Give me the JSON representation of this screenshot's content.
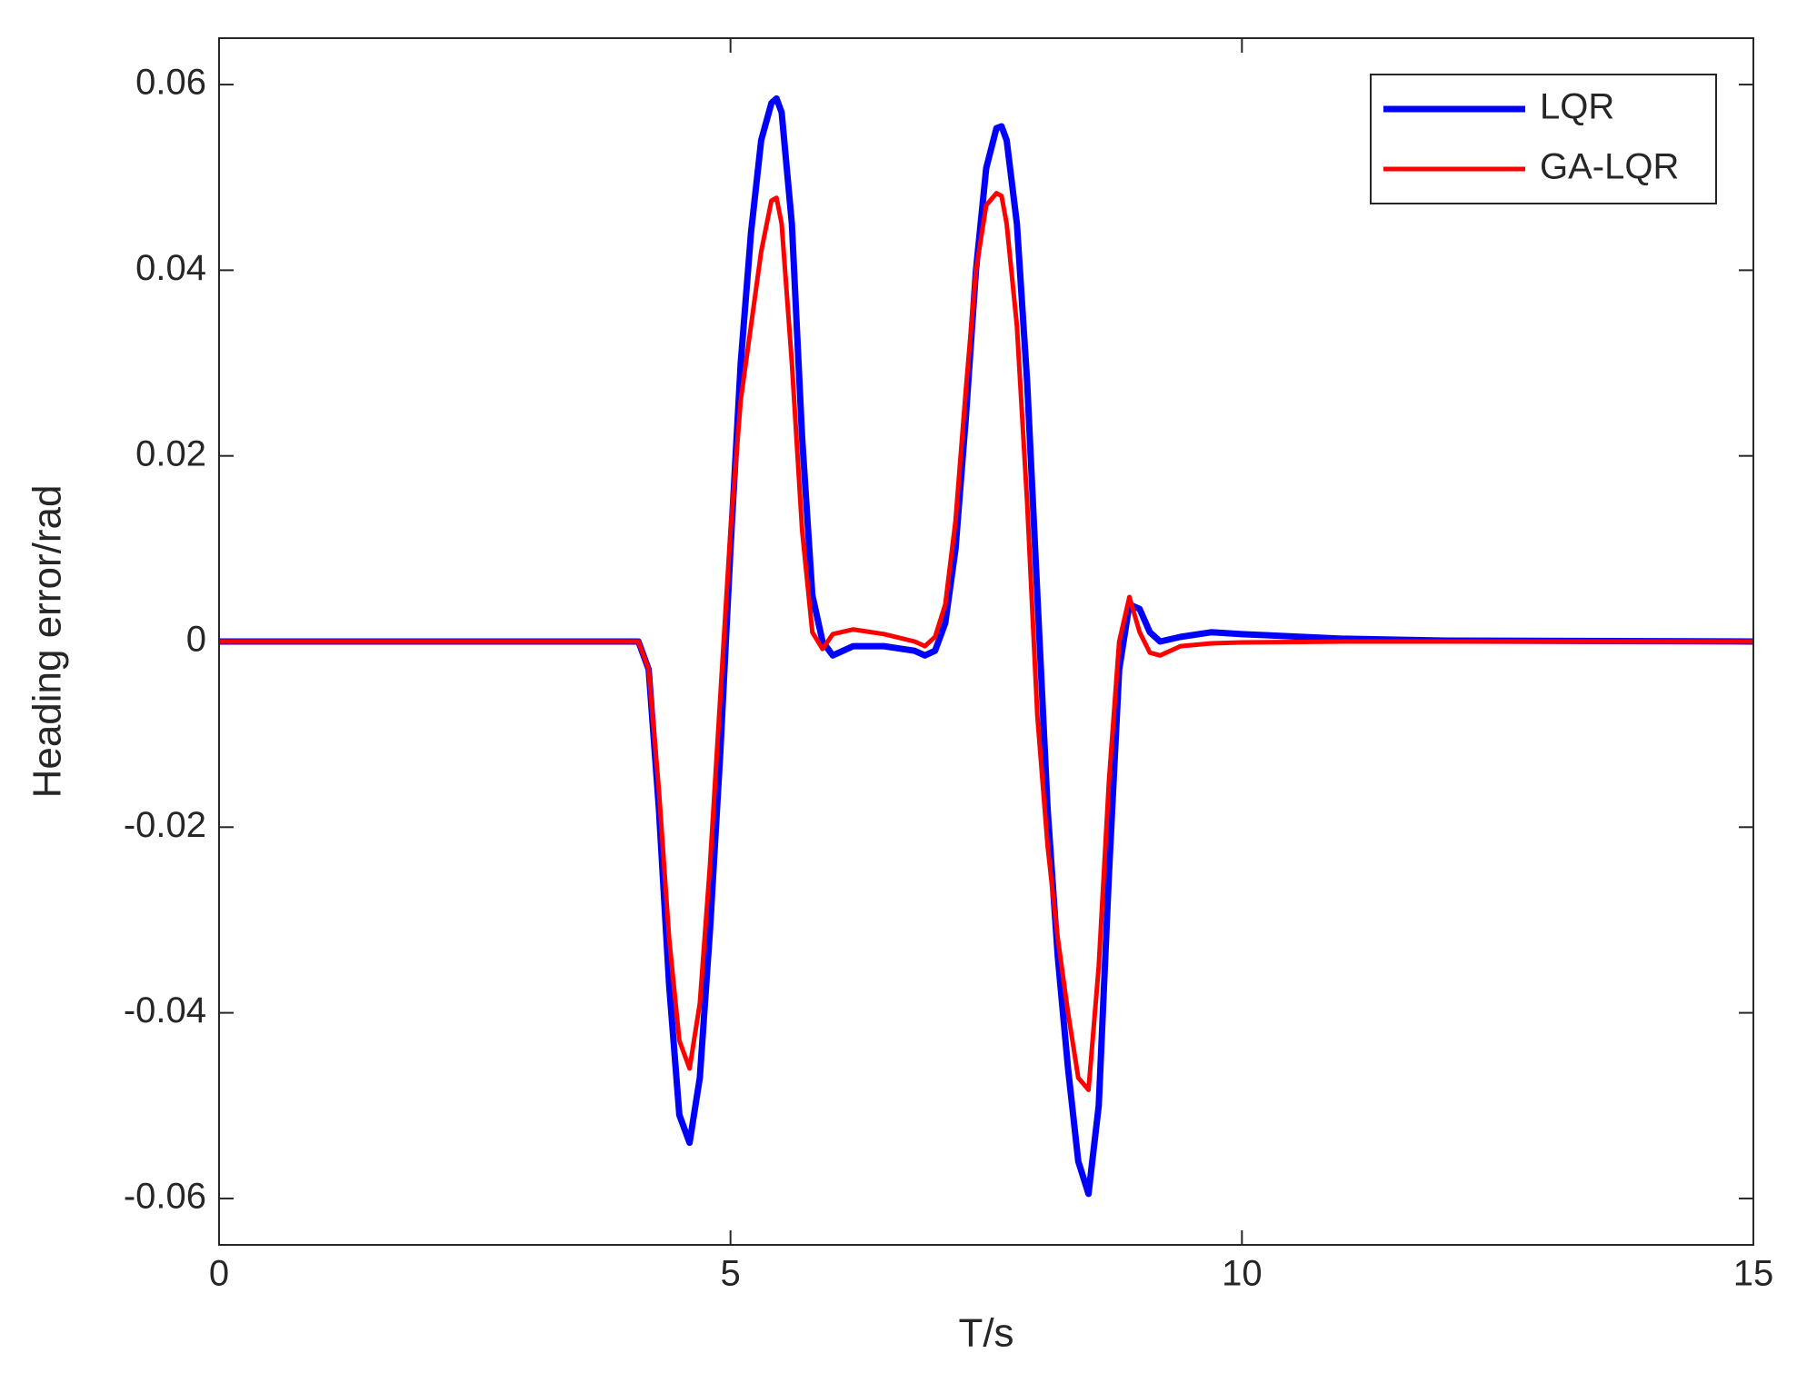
{
  "chart_data": {
    "type": "line",
    "xlabel": "T/s",
    "ylabel": "Heading error/rad",
    "x": [
      0,
      4.0,
      4.1,
      4.2,
      4.3,
      4.4,
      4.5,
      4.6,
      4.7,
      4.8,
      4.9,
      5.0,
      5.1,
      5.2,
      5.3,
      5.4,
      5.45,
      5.5,
      5.6,
      5.7,
      5.8,
      5.9,
      6.0,
      6.2,
      6.5,
      6.8,
      6.9,
      7.0,
      7.1,
      7.2,
      7.3,
      7.4,
      7.5,
      7.6,
      7.65,
      7.7,
      7.8,
      7.9,
      8.0,
      8.1,
      8.2,
      8.3,
      8.4,
      8.5,
      8.6,
      8.7,
      8.8,
      8.9,
      9.0,
      9.1,
      9.2,
      9.4,
      9.7,
      10,
      11,
      12,
      15
    ],
    "series": [
      {
        "name": "LQR",
        "color": "#0000ff",
        "values": [
          0,
          0,
          0,
          -0.003,
          -0.018,
          -0.037,
          -0.051,
          -0.054,
          -0.047,
          -0.031,
          -0.012,
          0.01,
          0.03,
          0.044,
          0.054,
          0.058,
          0.0585,
          0.057,
          0.045,
          0.022,
          0.005,
          0.0,
          -0.0015,
          -0.0005,
          -0.0005,
          -0.001,
          -0.0015,
          -0.001,
          0.002,
          0.01,
          0.024,
          0.04,
          0.051,
          0.0553,
          0.0555,
          0.054,
          0.045,
          0.028,
          0.005,
          -0.018,
          -0.034,
          -0.046,
          -0.056,
          -0.0595,
          -0.05,
          -0.025,
          -0.003,
          0.004,
          0.0035,
          0.001,
          0,
          0.0005,
          0.001,
          0.0008,
          0.0003,
          0.0001,
          0
        ]
      },
      {
        "name": "GA-LQR",
        "color": "#ff0000",
        "values": [
          0,
          0,
          0,
          -0.003,
          -0.016,
          -0.032,
          -0.043,
          -0.046,
          -0.039,
          -0.024,
          -0.006,
          0.012,
          0.026,
          0.034,
          0.042,
          0.0475,
          0.0478,
          0.045,
          0.03,
          0.012,
          0.001,
          -0.0008,
          0.0008,
          0.0013,
          0.0008,
          0,
          -0.0005,
          0.0005,
          0.004,
          0.013,
          0.027,
          0.04,
          0.047,
          0.0483,
          0.048,
          0.045,
          0.034,
          0.015,
          -0.008,
          -0.022,
          -0.032,
          -0.04,
          -0.047,
          -0.0483,
          -0.035,
          -0.015,
          0.0,
          0.0048,
          0.001,
          -0.0012,
          -0.0015,
          -0.0005,
          -0.0002,
          -0.0001,
          0,
          0,
          0
        ]
      }
    ],
    "xlim": [
      0,
      15
    ],
    "xticks": [
      0,
      5,
      10,
      15
    ],
    "ylim": [
      -0.065,
      0.065
    ],
    "yticks": [
      -0.06,
      -0.04,
      -0.02,
      0,
      0.02,
      0.04,
      0.06
    ],
    "legend": "upper right"
  }
}
